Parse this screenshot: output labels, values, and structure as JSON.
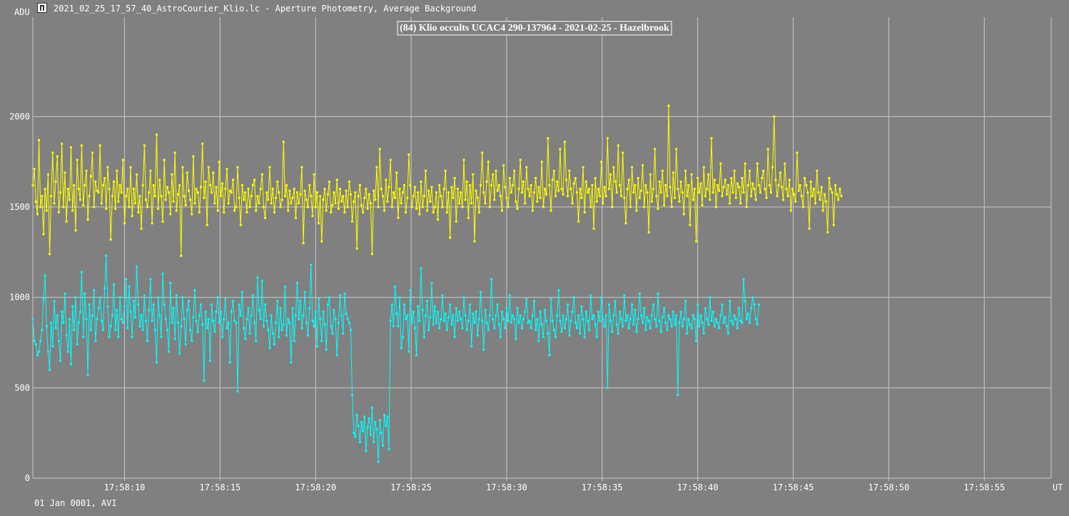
{
  "window": {
    "title": "2021_02_25_17_57_40_AstroCourier_Klio.lc - Aperture Photometry, Average Background",
    "icon": "app-icon"
  },
  "footer": {
    "date_label": "01 Jan 0001, AVI"
  },
  "colors": {
    "background": "#808080",
    "grid": "#c8c8c8",
    "target_series": "#00ffff",
    "comparison_series": "#ffff00",
    "text": "#ffffff"
  },
  "chart_data": {
    "type": "line",
    "title": "(84) Klio occults UCAC4 290-137964 - 2021-02-25 - Hazelbrook",
    "ylabel": "ADU",
    "xlabel": "UT",
    "ylim": [
      0,
      2550
    ],
    "xlim_seconds": [
      5.2,
      58.5
    ],
    "x_ticks": [
      "17:58:10",
      "17:58:15",
      "17:58:20",
      "17:58:25",
      "17:58:30",
      "17:58:35",
      "17:58:40",
      "17:58:45",
      "17:58:50",
      "17:58:55"
    ],
    "x_tick_seconds": [
      10,
      15,
      20,
      25,
      30,
      35,
      40,
      45,
      50,
      55
    ],
    "y_ticks": [
      0,
      500,
      1000,
      1500,
      2000
    ],
    "grid": true,
    "series": [
      {
        "color": "#ffff00",
        "x_start": 5.2,
        "x_step": 0.08,
        "values": [
          1620,
          1710,
          1530,
          1460,
          1870,
          1500,
          1560,
          1350,
          1600,
          1480,
          1680,
          1240,
          1560,
          1800,
          1520,
          1640,
          1780,
          1470,
          1580,
          1850,
          1500,
          1690,
          1420,
          1600,
          1540,
          1830,
          1480,
          1620,
          1370,
          1760,
          1600,
          1540,
          1840,
          1510,
          1620,
          1700,
          1430,
          1560,
          1670,
          1800,
          1500,
          1640,
          1590,
          1580,
          1840,
          1520,
          1620,
          1660,
          1490,
          1720,
          1600,
          1320,
          1560,
          1640,
          1490,
          1700,
          1530,
          1620,
          1580,
          1760,
          1410,
          1560,
          1600,
          1500,
          1720,
          1450,
          1600,
          1520,
          1680,
          1470,
          1560,
          1380,
          1620,
          1840,
          1540,
          1500,
          1580,
          1700,
          1410,
          1620,
          1560,
          1900,
          1490,
          1650,
          1560,
          1420,
          1760,
          1540,
          1610,
          1580,
          1460,
          1680,
          1530,
          1800,
          1480,
          1570,
          1620,
          1230,
          1720,
          1560,
          1510,
          1690,
          1590,
          1540,
          1460,
          1780,
          1520,
          1600,
          1580,
          1470,
          1610,
          1850,
          1550,
          1640,
          1400,
          1720,
          1620,
          1580,
          1690,
          1520,
          1610,
          1480,
          1750,
          1560,
          1630,
          1470,
          1600,
          1710,
          1520,
          1590,
          1580,
          1650,
          1480,
          1500,
          1720,
          1550,
          1400,
          1620,
          1540,
          1580,
          1470,
          1600,
          1500,
          1560,
          1620,
          1650,
          1480,
          1560,
          1520,
          1600,
          1680,
          1500,
          1440,
          1580,
          1540,
          1720,
          1520,
          1600,
          1470,
          1550,
          1640,
          1580,
          1500,
          1540,
          1860,
          1560,
          1620,
          1480,
          1590,
          1520,
          1550,
          1600,
          1440,
          1580,
          1520,
          1570,
          1720,
          1300,
          1590,
          1540,
          1500,
          1620,
          1560,
          1450,
          1680,
          1500,
          1580,
          1410,
          1560,
          1310,
          1540,
          1600,
          1480,
          1570,
          1640,
          1470,
          1510,
          1580,
          1520,
          1650,
          1490,
          1600,
          1530,
          1560,
          1470,
          1590,
          1500,
          1640,
          1570,
          1420,
          1530,
          1580,
          1270,
          1560,
          1620,
          1510,
          1470,
          1550,
          1600,
          1490,
          1570,
          1520,
          1240,
          1590,
          1540,
          1720,
          1500,
          1820,
          1600,
          1560,
          1480,
          1650,
          1530,
          1610,
          1760,
          1500,
          1580,
          1550,
          1690,
          1440,
          1600,
          1520,
          1580,
          1620,
          1470,
          1550,
          1790,
          1620,
          1500,
          1560,
          1610,
          1490,
          1580,
          1460,
          1640,
          1500,
          1560,
          1700,
          1480,
          1590,
          1530,
          1610,
          1470,
          1500,
          1580,
          1430,
          1620,
          1560,
          1500,
          1600,
          1700,
          1470,
          1580,
          1330,
          1610,
          1550,
          1660,
          1420,
          1600,
          1520,
          1580,
          1500,
          1760,
          1540,
          1640,
          1440,
          1620,
          1520,
          1680,
          1310,
          1590,
          1550,
          1470,
          1620,
          1800,
          1580,
          1520,
          1640,
          1750,
          1500,
          1620,
          1680,
          1540,
          1700,
          1590,
          1620,
          1560,
          1480,
          1730,
          1610,
          1550,
          1500,
          1660,
          1580,
          1620,
          1700,
          1530,
          1490,
          1600,
          1760,
          1580,
          1640,
          1520,
          1720,
          1600,
          1560,
          1620,
          1480,
          1580,
          1660,
          1530,
          1610,
          1550,
          1750,
          1500,
          1600,
          1570,
          1880,
          1620,
          1480,
          1650,
          1700,
          1560,
          1640,
          1590,
          1820,
          1600,
          1570,
          1860,
          1650,
          1560,
          1700,
          1600,
          1520,
          1630,
          1660,
          1580,
          1420,
          1600,
          1550,
          1720,
          1470,
          1640,
          1580,
          1600,
          1500,
          1620,
          1380,
          1660,
          1530,
          1600,
          1560,
          1750,
          1520,
          1610,
          1560,
          1880,
          1600,
          1680,
          1500,
          1720,
          1640,
          1580,
          1840,
          1620,
          1560,
          1800,
          1550,
          1410,
          1600,
          1650,
          1500,
          1720,
          1580,
          1620,
          1480,
          1660,
          1550,
          1590,
          1730,
          1500,
          1620,
          1580,
          1360,
          1680,
          1530,
          1600,
          1820,
          1560,
          1490,
          1640,
          1580,
          1700,
          1510,
          1620,
          1560,
          2060,
          1610,
          1500,
          1690,
          1550,
          1820,
          1600,
          1530,
          1640,
          1580,
          1460,
          1700,
          1560,
          1620,
          1400,
          1680,
          1540,
          1600,
          1310,
          1660,
          1580,
          1630,
          1510,
          1720,
          1560,
          1600,
          1680,
          1540,
          1880,
          1580,
          1650,
          1500,
          1620,
          1590,
          1740,
          1560,
          1610,
          1650,
          1570,
          1620,
          1520,
          1660,
          1580,
          1700,
          1550,
          1630,
          1610,
          1520,
          1660,
          1580,
          1740,
          1500,
          1620,
          1700,
          1560,
          1630,
          1600,
          1540,
          1740,
          1620,
          1580,
          1660,
          1700,
          1600,
          1550,
          1820,
          1620,
          1580,
          1720,
          2000,
          1650,
          1560,
          1620,
          1690,
          1610,
          1540,
          1740,
          1600,
          1560,
          1650,
          1480,
          1600,
          1570,
          1530,
          1800,
          1590,
          1620,
          1560,
          1500,
          1660,
          1620,
          1580,
          1380,
          1640,
          1560,
          1600,
          1520,
          1700,
          1580,
          1540,
          1610,
          1480,
          1570,
          1530,
          1360,
          1660,
          1600,
          1580,
          1400,
          1620,
          1570,
          1540,
          1600,
          1560
        ]
      },
      {
        "color": "#00ffff",
        "x_start": 5.2,
        "x_step": 0.08,
        "values": [
          880,
          760,
          740,
          680,
          700,
          760,
          820,
          990,
          1120,
          840,
          700,
          600,
          860,
          730,
          980,
          830,
          900,
          760,
          650,
          920,
          860,
          1020,
          790,
          700,
          880,
          630,
          950,
          820,
          1000,
          740,
          860,
          920,
          1140,
          780,
          1020,
          880,
          570,
          960,
          820,
          900,
          1040,
          760,
          880,
          940,
          1000,
          870,
          820,
          1050,
          1230,
          950,
          780,
          840,
          900,
          1070,
          820,
          930,
          780,
          1000,
          880,
          860,
          950,
          1100,
          830,
          1060,
          920,
          780,
          980,
          890,
          1170,
          960,
          840,
          900,
          820,
          1010,
          870,
          760,
          930,
          1100,
          870,
          960,
          820,
          640,
          1000,
          900,
          780,
          1130,
          960,
          880,
          820,
          700,
          1080,
          860,
          940,
          770,
          1010,
          860,
          690,
          840,
          1000,
          880,
          740,
          930,
          980,
          820,
          760,
          890,
          1040,
          870,
          810,
          900,
          960,
          850,
          540,
          920,
          830,
          880,
          650,
          960,
          870,
          810,
          920,
          1000,
          860,
          920,
          780,
          880,
          990,
          830,
          860,
          640,
          920,
          980,
          870,
          860,
          480,
          960,
          900,
          1030,
          830,
          770,
          880,
          940,
          800,
          900,
          1010,
          860,
          760,
          1110,
          930,
          880,
          1090,
          840,
          960,
          870,
          820,
          720,
          900,
          800,
          740,
          860,
          980,
          780,
          940,
          820,
          850,
          1060,
          790,
          880,
          860,
          640,
          940,
          760,
          900,
          1080,
          880,
          980,
          830,
          900,
          1030,
          860,
          790,
          940,
          1180,
          870,
          840,
          920,
          730,
          990,
          880,
          760,
          920,
          850,
          710,
          960,
          1000,
          840,
          800,
          930,
          880,
          680,
          860,
          1010,
          900,
          800,
          1020,
          910,
          880,
          860,
          820,
          460,
          250,
          230,
          350,
          290,
          200,
          310,
          260,
          340,
          150,
          280,
          330,
          240,
          390,
          200,
          310,
          270,
          90,
          320,
          250,
          180,
          350,
          290,
          340,
          160,
          870,
          960,
          840,
          1060,
          910,
          840,
          1000,
          720,
          780,
          960,
          880,
          900,
          700,
          1040,
          860,
          920,
          830,
          680,
          950,
          870,
          1160,
          930,
          780,
          900,
          980,
          820,
          890,
          1080,
          850,
          950,
          860,
          920,
          830,
          880,
          1010,
          870,
          910,
          820,
          890,
          960,
          850,
          900,
          780,
          940,
          870,
          920,
          880,
          830,
          1000,
          900,
          820,
          870,
          960,
          730,
          910,
          860,
          920,
          790,
          880,
          1030,
          870,
          710,
          930,
          860,
          820,
          900,
          1100,
          880,
          830,
          900,
          960,
          850,
          780,
          920,
          880,
          830,
          940,
          870,
          1010,
          860,
          900,
          880,
          770,
          940,
          860,
          900,
          830,
          880,
          920,
          990,
          860,
          870,
          830,
          900,
          980,
          820,
          880,
          760,
          920,
          850,
          780,
          930,
          870,
          800,
          680,
          990,
          870,
          820,
          780,
          900,
          1040,
          870,
          810,
          900,
          830,
          880,
          960,
          790,
          870,
          920,
          1000,
          860,
          830,
          900,
          800,
          950,
          880,
          780,
          920,
          870,
          820,
          1010,
          880,
          900,
          850,
          780,
          920,
          870,
          1000,
          880,
          840,
          900,
          500,
          960,
          870,
          810,
          900,
          980,
          850,
          800,
          920,
          880,
          840,
          1010,
          870,
          900,
          830,
          880,
          960,
          850,
          930,
          810,
          880,
          1020,
          900,
          860,
          940,
          820,
          890,
          870,
          830,
          900,
          960,
          880,
          840,
          1020,
          870,
          810,
          890,
          940,
          860,
          820,
          900,
          880,
          840,
          920,
          850,
          900,
          460,
          860,
          920,
          840,
          880,
          980,
          800,
          880,
          850,
          830,
          900,
          880,
          760,
          960,
          840,
          900,
          860,
          800,
          940,
          880,
          850,
          1000,
          870,
          920,
          840,
          880,
          860,
          830,
          900,
          960,
          860,
          890,
          840,
          800,
          980,
          870,
          850,
          900,
          880,
          830,
          940,
          870,
          860,
          1100,
          980,
          880,
          910,
          860,
          940,
          1000,
          960,
          880,
          850,
          960
        ]
      }
    ]
  }
}
